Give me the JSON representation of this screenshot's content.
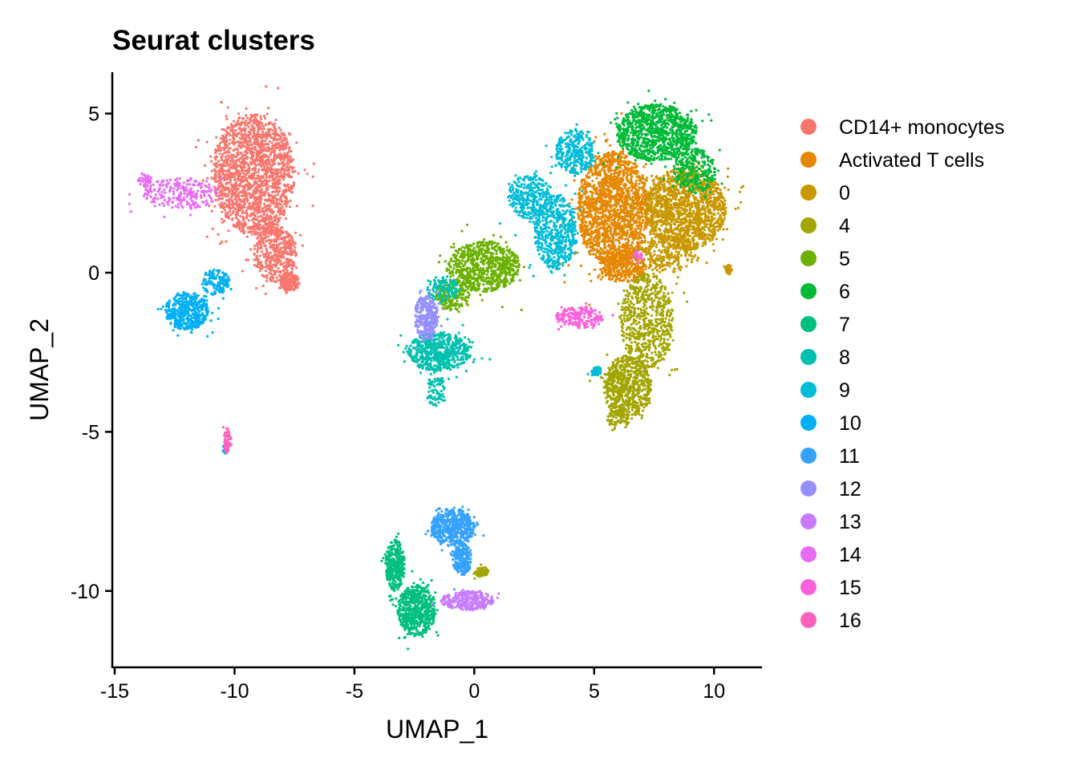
{
  "chart_data": {
    "type": "scatter",
    "title": "Seurat clusters",
    "xlabel": "UMAP_1",
    "ylabel": "UMAP_2",
    "xlim": [
      -15.1,
      12.0
    ],
    "ylim": [
      -12.4,
      6.3
    ],
    "x_ticks": [
      -15,
      -10,
      -5,
      0,
      5,
      10
    ],
    "x_tick_labels": [
      "-15",
      "-10",
      "-5",
      "0",
      "5",
      "10"
    ],
    "y_ticks": [
      5,
      0,
      -5,
      -10
    ],
    "y_tick_labels": [
      "5",
      "0",
      "-5",
      "-10"
    ],
    "grid": false,
    "legend_position": "right",
    "series": [
      {
        "name": "CD14+ monocytes",
        "color": "#F8766D",
        "cells": 2400,
        "regions": [
          {
            "cx": -9.2,
            "cy": 3.1,
            "rx": 1.7,
            "ry": 1.9,
            "w": 0.75
          },
          {
            "cx": -8.3,
            "cy": 0.6,
            "rx": 0.9,
            "ry": 0.9,
            "w": 0.18
          },
          {
            "cx": -7.7,
            "cy": -0.3,
            "rx": 0.4,
            "ry": 0.3,
            "w": 0.07
          }
        ]
      },
      {
        "name": "Activated T cells",
        "color": "#E58700",
        "cells": 2100,
        "regions": [
          {
            "cx": 5.8,
            "cy": 2.0,
            "rx": 1.5,
            "ry": 1.8,
            "w": 0.85
          },
          {
            "cx": 6.2,
            "cy": 0.2,
            "rx": 1.0,
            "ry": 0.5,
            "w": 0.15
          }
        ]
      },
      {
        "name": "0",
        "color": "#C99800",
        "cells": 1800,
        "regions": [
          {
            "cx": 8.8,
            "cy": 2.0,
            "rx": 1.7,
            "ry": 1.3,
            "w": 0.85
          },
          {
            "cx": 8.0,
            "cy": 0.6,
            "rx": 1.2,
            "ry": 0.6,
            "w": 0.13
          },
          {
            "cx": 10.6,
            "cy": 0.1,
            "rx": 0.15,
            "ry": 0.15,
            "w": 0.02
          }
        ]
      },
      {
        "name": "4",
        "color": "#A3A500",
        "cells": 1500,
        "regions": [
          {
            "cx": 7.2,
            "cy": -1.5,
            "rx": 1.1,
            "ry": 1.5,
            "w": 0.45
          },
          {
            "cx": 6.4,
            "cy": -3.6,
            "rx": 1.0,
            "ry": 1.0,
            "w": 0.45
          },
          {
            "cx": 0.3,
            "cy": -9.4,
            "rx": 0.3,
            "ry": 0.15,
            "w": 0.05
          },
          {
            "cx": 6.0,
            "cy": -4.6,
            "rx": 0.5,
            "ry": 0.4,
            "w": 0.05
          }
        ]
      },
      {
        "name": "5",
        "color": "#6BB100",
        "cells": 900,
        "regions": [
          {
            "cx": 0.4,
            "cy": 0.2,
            "rx": 1.5,
            "ry": 0.8,
            "w": 0.8
          },
          {
            "cx": -0.9,
            "cy": -0.7,
            "rx": 0.7,
            "ry": 0.5,
            "w": 0.2
          }
        ]
      },
      {
        "name": "6",
        "color": "#00BA38",
        "cells": 1300,
        "regions": [
          {
            "cx": 7.6,
            "cy": 4.4,
            "rx": 1.7,
            "ry": 0.9,
            "w": 0.8
          },
          {
            "cx": 9.2,
            "cy": 3.2,
            "rx": 0.9,
            "ry": 0.7,
            "w": 0.2
          }
        ]
      },
      {
        "name": "7",
        "color": "#00BF7D",
        "cells": 900,
        "regions": [
          {
            "cx": -2.4,
            "cy": -10.6,
            "rx": 0.8,
            "ry": 0.8,
            "w": 0.65
          },
          {
            "cx": -3.3,
            "cy": -9.2,
            "rx": 0.4,
            "ry": 0.8,
            "w": 0.35
          }
        ]
      },
      {
        "name": "8",
        "color": "#00C0AF",
        "cells": 800,
        "regions": [
          {
            "cx": -1.5,
            "cy": -2.5,
            "rx": 1.3,
            "ry": 0.6,
            "w": 0.75
          },
          {
            "cx": -1.6,
            "cy": -3.7,
            "rx": 0.4,
            "ry": 0.5,
            "w": 0.1
          },
          {
            "cx": -1.3,
            "cy": -0.5,
            "rx": 0.7,
            "ry": 0.4,
            "w": 0.15
          }
        ]
      },
      {
        "name": "9",
        "color": "#00BCD8",
        "cells": 1200,
        "regions": [
          {
            "cx": 3.4,
            "cy": 1.3,
            "rx": 0.9,
            "ry": 1.2,
            "w": 0.45
          },
          {
            "cx": 2.3,
            "cy": 2.4,
            "rx": 0.9,
            "ry": 0.7,
            "w": 0.25
          },
          {
            "cx": 4.2,
            "cy": 3.8,
            "rx": 0.8,
            "ry": 0.7,
            "w": 0.25
          },
          {
            "cx": 5.1,
            "cy": -3.1,
            "rx": 0.2,
            "ry": 0.15,
            "w": 0.05
          }
        ]
      },
      {
        "name": "10",
        "color": "#00B0F6",
        "cells": 650,
        "regions": [
          {
            "cx": -12.0,
            "cy": -1.2,
            "rx": 0.9,
            "ry": 0.6,
            "w": 0.75
          },
          {
            "cx": -10.8,
            "cy": -0.3,
            "rx": 0.6,
            "ry": 0.4,
            "w": 0.2
          },
          {
            "cx": -10.4,
            "cy": -5.5,
            "rx": 0.1,
            "ry": 0.2,
            "w": 0.05
          }
        ]
      },
      {
        "name": "11",
        "color": "#35A2FF",
        "cells": 750,
        "regions": [
          {
            "cx": -0.9,
            "cy": -8.0,
            "rx": 0.9,
            "ry": 0.6,
            "w": 0.7
          },
          {
            "cx": -0.5,
            "cy": -9.0,
            "rx": 0.4,
            "ry": 0.5,
            "w": 0.3
          }
        ]
      },
      {
        "name": "12",
        "color": "#9590FF",
        "cells": 300,
        "regions": [
          {
            "cx": -2.0,
            "cy": -1.4,
            "rx": 0.5,
            "ry": 0.7,
            "w": 1.0
          }
        ]
      },
      {
        "name": "13",
        "color": "#C77CFF",
        "cells": 300,
        "regions": [
          {
            "cx": -0.3,
            "cy": -10.3,
            "rx": 1.1,
            "ry": 0.3,
            "w": 1.0
          }
        ]
      },
      {
        "name": "14",
        "color": "#E76BF3",
        "cells": 280,
        "regions": [
          {
            "cx": -12.2,
            "cy": 2.5,
            "rx": 1.6,
            "ry": 0.5,
            "w": 0.85
          },
          {
            "cx": -13.7,
            "cy": 2.9,
            "rx": 0.3,
            "ry": 0.2,
            "w": 0.15
          }
        ]
      },
      {
        "name": "15",
        "color": "#FA62DB",
        "cells": 220,
        "regions": [
          {
            "cx": 4.4,
            "cy": -1.4,
            "rx": 1.0,
            "ry": 0.35,
            "w": 0.9
          },
          {
            "cx": 6.8,
            "cy": 0.5,
            "rx": 0.25,
            "ry": 0.2,
            "w": 0.1
          }
        ]
      },
      {
        "name": "16",
        "color": "#FF62BC",
        "cells": 60,
        "regions": [
          {
            "cx": -10.3,
            "cy": -5.3,
            "rx": 0.15,
            "ry": 0.4,
            "w": 1.0
          }
        ]
      }
    ]
  }
}
